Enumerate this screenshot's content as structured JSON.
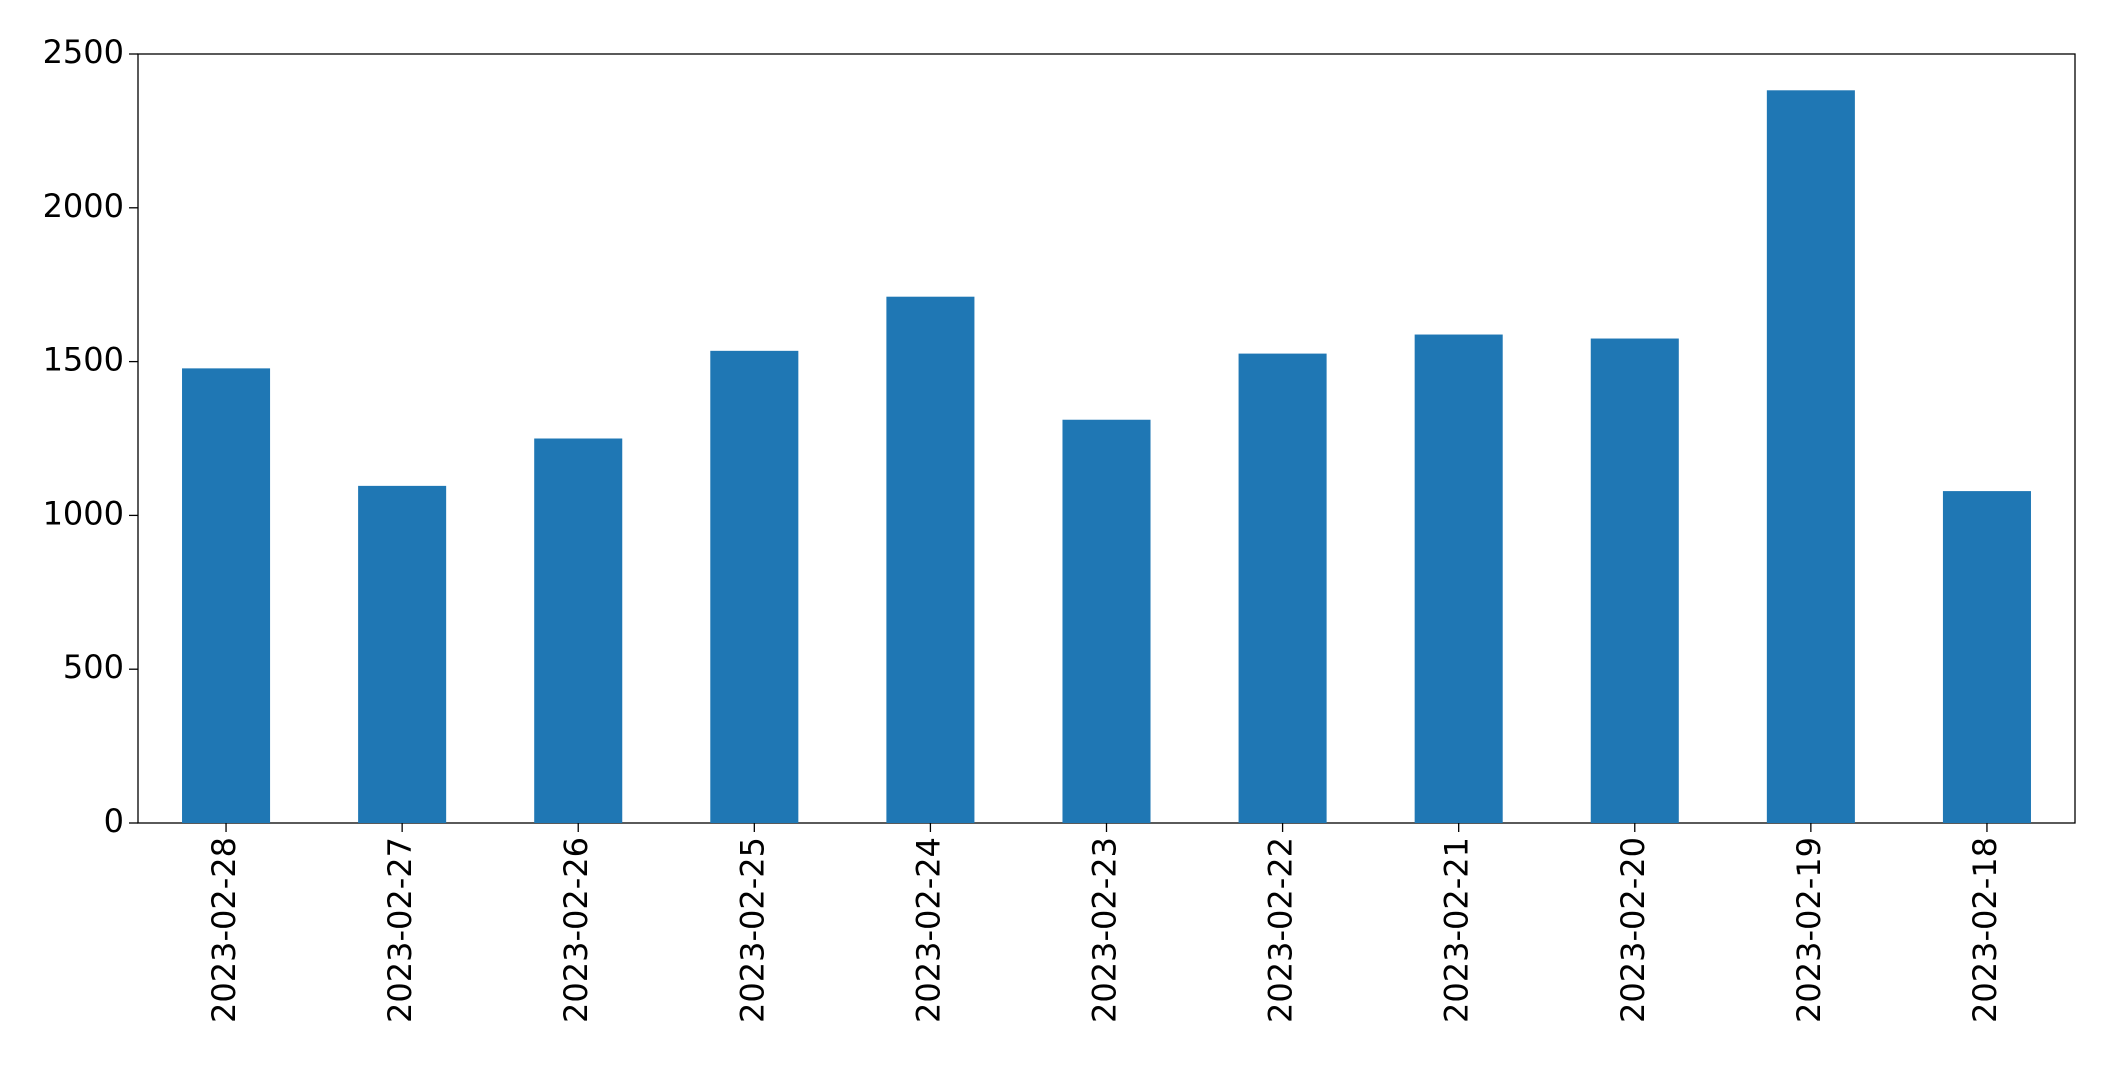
{
  "chart_data": {
    "type": "bar",
    "categories": [
      "2023-02-28",
      "2023-02-27",
      "2023-02-26",
      "2023-02-25",
      "2023-02-24",
      "2023-02-23",
      "2023-02-22",
      "2023-02-21",
      "2023-02-20",
      "2023-02-19",
      "2023-02-18"
    ],
    "values": [
      1478,
      1096,
      1250,
      1535,
      1711,
      1311,
      1526,
      1588,
      1575,
      2382,
      1079
    ],
    "color": "#1f77b4",
    "ylim": [
      0,
      2500
    ],
    "yticks": [
      0,
      500,
      1000,
      1500,
      2000,
      2500
    ],
    "grid": false
  }
}
